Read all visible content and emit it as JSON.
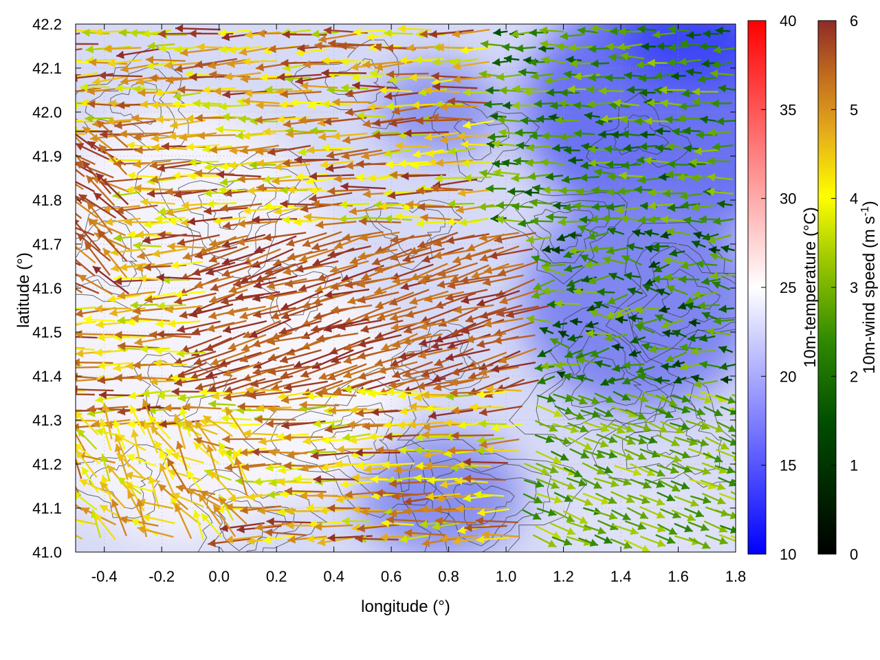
{
  "chart_data": {
    "type": "heatmap",
    "overlays": [
      "wind-vectors",
      "terrain-contours"
    ],
    "title": "",
    "xlabel": "longitude (°)",
    "ylabel": "latitude (°)",
    "xlim": [
      -0.5,
      1.8
    ],
    "ylim": [
      41.0,
      42.2
    ],
    "x_ticks": [
      "-0.4",
      "-0.2",
      "0.0",
      "0.2",
      "0.4",
      "0.6",
      "0.8",
      "1.0",
      "1.2",
      "1.4",
      "1.6",
      "1.8"
    ],
    "y_ticks": [
      "41.0",
      "41.1",
      "41.2",
      "41.3",
      "41.4",
      "41.5",
      "41.6",
      "41.7",
      "41.8",
      "41.9",
      "42.0",
      "42.1",
      "42.2"
    ],
    "grid": true,
    "temperature_colorbar": {
      "label": "10m-temperature (°C)",
      "range": [
        10,
        40
      ],
      "ticks": [
        "10",
        "15",
        "20",
        "25",
        "30",
        "35",
        "40"
      ],
      "colors": [
        "#0000ff",
        "#ffffff",
        "#ff0000"
      ]
    },
    "wind_colorbar": {
      "label_main": "10m-wind speed (m s",
      "label_sup": "-1",
      "label_end": ")",
      "range": [
        0,
        6
      ],
      "ticks": [
        "0",
        "1",
        "2",
        "3",
        "4",
        "5",
        "6"
      ],
      "colors": [
        "#000000",
        "#006400",
        "#78b400",
        "#ffff00",
        "#e0a000",
        "#c86e14",
        "#962828"
      ]
    },
    "regions": {
      "west_wind": {
        "direction": "from east",
        "speed_ms": [
          3.5,
          6
        ]
      },
      "central_wind": {
        "direction": "from east-southeast",
        "speed_ms": [
          5,
          6
        ]
      },
      "northeast_wind": {
        "direction": "from east",
        "speed_ms": [
          1.5,
          3
        ]
      },
      "southeast_wind": {
        "direction": "from west",
        "speed_ms": [
          2,
          3.5
        ]
      }
    }
  }
}
